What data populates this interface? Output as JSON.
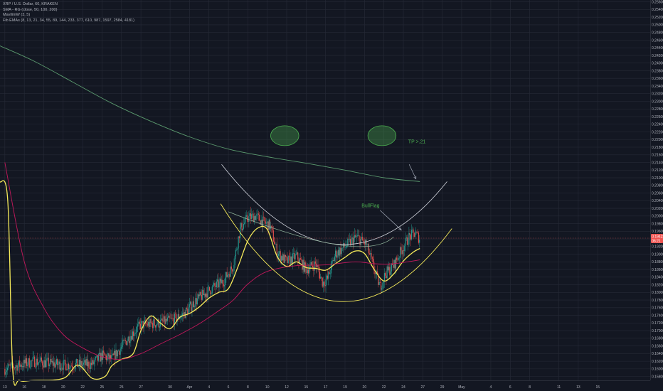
{
  "legend": {
    "symbol": "XRP / U.S. Dollar, 60, KRAKEN",
    "smma": "SMA - RG (close, 50, 100, 200)",
    "mavilim": "MavilimW (3, 5)",
    "fib": "Fib EMAs (8, 13, 21, 34, 55, 89, 144, 233, 377, 610, 987, 1597, 2584, 4181)"
  },
  "colors": {
    "background": "#131722",
    "grid": "#262a37",
    "up": "#26a69a",
    "down": "#ef5350",
    "yellow": "#f5ea5a",
    "red_line": "#c2185b",
    "green_line": "#5b9a6e",
    "annotation": "#4caf50",
    "price_tag": "#ef5350"
  },
  "chart_data": {
    "type": "candlestick",
    "symbol": "XRP / U.S. Dollar",
    "interval": "60",
    "exchange": "KRAKEN",
    "ylim": [
      0.157,
      0.2565
    ],
    "y_ticks": [
      "0.25600",
      "0.25400",
      "0.25200",
      "0.25000",
      "0.24800",
      "0.24600",
      "0.24400",
      "0.24200",
      "0.24000",
      "0.23800",
      "0.23600",
      "0.23400",
      "0.23200",
      "0.23000",
      "0.22800",
      "0.22600",
      "0.22400",
      "0.22200",
      "0.22000",
      "0.21800",
      "0.21600",
      "0.21400",
      "0.21200",
      "0.21000",
      "0.20800",
      "0.20600",
      "0.20400",
      "0.20200",
      "0.20000",
      "0.19800",
      "0.19600",
      "0.19400",
      "0.19200",
      "0.19000",
      "0.18800",
      "0.18600",
      "0.18400",
      "0.18200",
      "0.18000",
      "0.17800",
      "0.17600",
      "0.17400",
      "0.17200",
      "0.17000",
      "0.16800",
      "0.16600",
      "0.16400",
      "0.16200",
      "0.16000",
      "0.15800"
    ],
    "x_labels": [
      {
        "t": 0,
        "label": "13"
      },
      {
        "t": 2,
        "label": "16"
      },
      {
        "t": 4,
        "label": "18"
      },
      {
        "t": 6,
        "label": "20"
      },
      {
        "t": 8,
        "label": "22"
      },
      {
        "t": 10,
        "label": "25"
      },
      {
        "t": 12,
        "label": "25"
      },
      {
        "t": 14,
        "label": "27"
      },
      {
        "t": 17,
        "label": "30"
      },
      {
        "t": 19,
        "label": "Apr"
      },
      {
        "t": 21,
        "label": "4"
      },
      {
        "t": 23,
        "label": "6"
      },
      {
        "t": 25,
        "label": "8"
      },
      {
        "t": 27,
        "label": "10"
      },
      {
        "t": 29,
        "label": "12"
      },
      {
        "t": 31,
        "label": "15"
      },
      {
        "t": 33,
        "label": "17"
      },
      {
        "t": 35,
        "label": "19"
      },
      {
        "t": 37,
        "label": "20"
      },
      {
        "t": 39,
        "label": "22"
      },
      {
        "t": 41,
        "label": "24"
      },
      {
        "t": 43,
        "label": "27"
      },
      {
        "t": 45,
        "label": "29"
      },
      {
        "t": 47,
        "label": "May"
      },
      {
        "t": 50,
        "label": "4"
      },
      {
        "t": 52,
        "label": "6"
      },
      {
        "t": 54,
        "label": "8"
      },
      {
        "t": 57,
        "label": "11"
      },
      {
        "t": 59,
        "label": "13"
      },
      {
        "t": 61,
        "label": "15"
      }
    ],
    "xlim": [
      -0.5,
      66.4
    ],
    "last_price": "0.19422",
    "last_sub": "06:21",
    "last_value": 0.1942,
    "close_path": [
      [
        0,
        0.16
      ],
      [
        3,
        0.162
      ],
      [
        6,
        0.161
      ],
      [
        9,
        0.1612
      ],
      [
        10,
        0.1635
      ],
      [
        11,
        0.1625
      ],
      [
        13,
        0.169
      ],
      [
        14,
        0.1715
      ],
      [
        16,
        0.172
      ],
      [
        17.5,
        0.173
      ],
      [
        18.5,
        0.1745
      ],
      [
        19.5,
        0.1775
      ],
      [
        21,
        0.1805
      ],
      [
        22.5,
        0.183
      ],
      [
        23.5,
        0.187
      ],
      [
        24.2,
        0.1965
      ],
      [
        25,
        0.1995
      ],
      [
        25.8,
        0.2
      ],
      [
        26.5,
        0.1985
      ],
      [
        27.3,
        0.1975
      ],
      [
        28,
        0.1905
      ],
      [
        29,
        0.188
      ],
      [
        30,
        0.1895
      ],
      [
        31,
        0.186
      ],
      [
        32,
        0.1875
      ],
      [
        32.7,
        0.1825
      ],
      [
        33.2,
        0.1835
      ],
      [
        34,
        0.19
      ],
      [
        35,
        0.192
      ],
      [
        36.2,
        0.1945
      ],
      [
        37.2,
        0.1925
      ],
      [
        38,
        0.186
      ],
      [
        38.6,
        0.1815
      ],
      [
        39.2,
        0.185
      ],
      [
        40,
        0.187
      ],
      [
        40.8,
        0.191
      ],
      [
        41.6,
        0.1945
      ],
      [
        42.2,
        0.1955
      ],
      [
        42.7,
        0.194
      ]
    ],
    "series": [
      {
        "name": "MavilimW",
        "color": "#f5ea5a",
        "points": [
          [
            -0.5,
            0.209
          ],
          [
            0.3,
            0.204
          ],
          [
            0.8,
            0.16
          ],
          [
            1.5,
            0.157
          ],
          [
            3,
            0.157
          ],
          [
            6,
            0.1575
          ],
          [
            7.5,
            0.161
          ],
          [
            9,
            0.1575
          ],
          [
            10.3,
            0.158
          ],
          [
            11,
            0.1608
          ],
          [
            12,
            0.1625
          ],
          [
            13.2,
            0.164
          ],
          [
            14,
            0.17
          ],
          [
            15,
            0.1738
          ],
          [
            16,
            0.172
          ],
          [
            17,
            0.1705
          ],
          [
            18,
            0.1735
          ],
          [
            19,
            0.1745
          ],
          [
            20,
            0.1762
          ],
          [
            21,
            0.1785
          ],
          [
            22,
            0.18
          ],
          [
            23,
            0.181
          ],
          [
            24,
            0.1868
          ],
          [
            25,
            0.1935
          ],
          [
            26,
            0.1968
          ],
          [
            27,
            0.1965
          ],
          [
            28,
            0.1895
          ],
          [
            29,
            0.1868
          ],
          [
            30,
            0.188
          ],
          [
            31,
            0.1865
          ],
          [
            32,
            0.1863
          ],
          [
            33,
            0.1858
          ],
          [
            34,
            0.1875
          ],
          [
            35,
            0.1892
          ],
          [
            36,
            0.1908
          ],
          [
            37,
            0.1902
          ],
          [
            38,
            0.186
          ],
          [
            39,
            0.183
          ],
          [
            40,
            0.1848
          ],
          [
            41,
            0.1882
          ],
          [
            42,
            0.1905
          ],
          [
            42.7,
            0.1915
          ]
        ]
      },
      {
        "name": "SMMA",
        "color": "#c2185b",
        "points": [
          [
            0,
            0.214
          ],
          [
            2,
            0.188
          ],
          [
            4,
            0.176
          ],
          [
            6,
            0.169
          ],
          [
            8,
            0.1655
          ],
          [
            10,
            0.1632
          ],
          [
            12,
            0.1625
          ],
          [
            14,
            0.164
          ],
          [
            16,
            0.1665
          ],
          [
            18,
            0.169
          ],
          [
            20,
            0.1718
          ],
          [
            22,
            0.1752
          ],
          [
            23.5,
            0.178
          ],
          [
            25,
            0.1822
          ],
          [
            27,
            0.1855
          ],
          [
            30,
            0.187
          ],
          [
            33,
            0.1872
          ],
          [
            36,
            0.188
          ],
          [
            38,
            0.1875
          ],
          [
            40,
            0.1875
          ],
          [
            42.7,
            0.1885
          ]
        ]
      },
      {
        "name": "Fib EMA",
        "color": "#5b9a6e",
        "points": [
          [
            -0.5,
            0.2445
          ],
          [
            3,
            0.2405
          ],
          [
            7,
            0.235
          ],
          [
            11,
            0.2295
          ],
          [
            15,
            0.2248
          ],
          [
            19,
            0.2207
          ],
          [
            23,
            0.2175
          ],
          [
            27,
            0.2155
          ],
          [
            31,
            0.2138
          ],
          [
            35,
            0.212
          ],
          [
            39,
            0.21
          ],
          [
            42.7,
            0.209
          ]
        ]
      }
    ],
    "annotations": [
      {
        "type": "label",
        "text": "TP >.21"
      },
      {
        "type": "label",
        "text": "BullFlag"
      }
    ],
    "drawings": {
      "eyes": [
        {
          "cx": 28.8,
          "cy": 0.221,
          "rx": 1.45,
          "ry": 0.0026
        },
        {
          "cx": 38.8,
          "cy": 0.221,
          "rx": 1.45,
          "ry": 0.0026
        }
      ],
      "smile_outer": [
        [
          22.3,
          0.2135
        ],
        [
          34.2,
          0.1926
        ],
        [
          45.5,
          0.209
        ]
      ],
      "smile_inner_top": [
        [
          23.0,
          0.2011
        ],
        [
          34.2,
          0.1925
        ],
        [
          40.0,
          0.1945
        ]
      ],
      "smile_inner_bottom": [
        [
          22.2,
          0.2032
        ],
        [
          34.0,
          0.1777
        ],
        [
          46.0,
          0.1967
        ]
      ],
      "tp_arrow": [
        [
          41.6,
          0.2135
        ],
        [
          42.3,
          0.2097
        ]
      ],
      "bull_arrow": [
        [
          38.6,
          0.2015
        ],
        [
          40.8,
          0.1963
        ]
      ],
      "tp_label_at": [
        41.5,
        0.219
      ],
      "bull_label_at": [
        36.7,
        0.2023
      ]
    }
  }
}
